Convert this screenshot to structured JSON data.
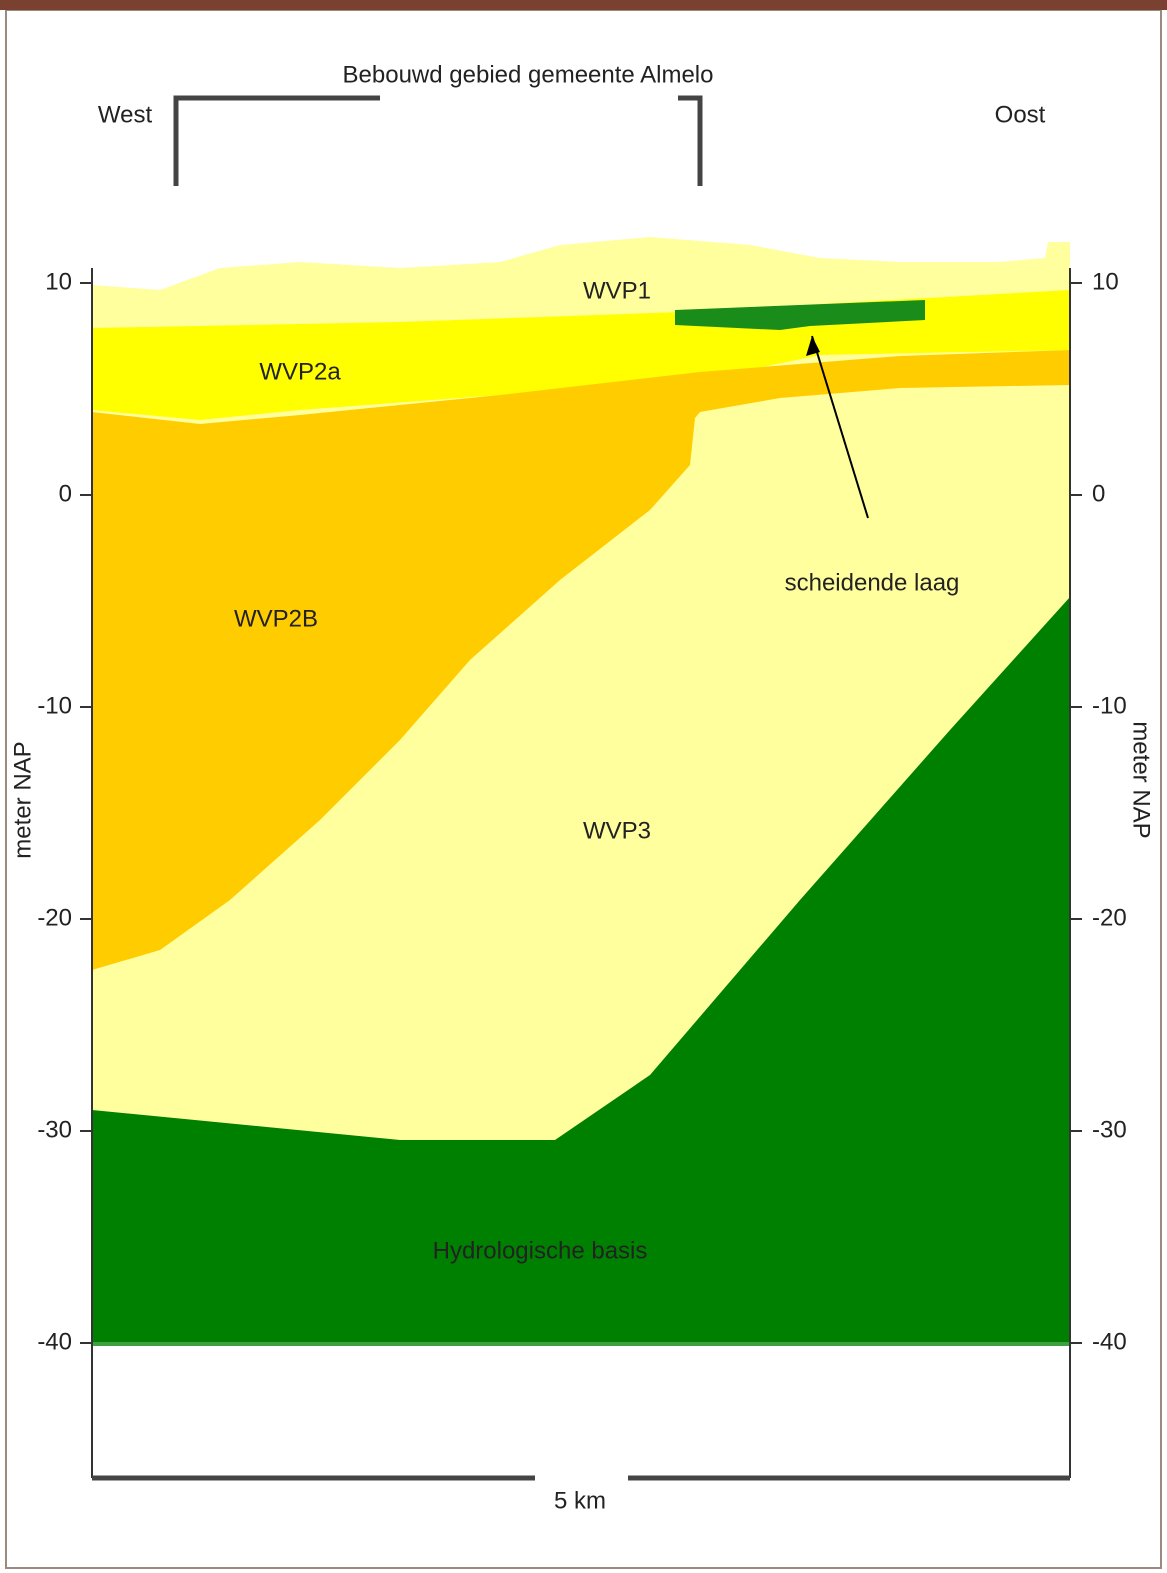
{
  "header": {
    "title": "Bebouwd gebied gemeente Almelo",
    "west": "West",
    "east": "Oost"
  },
  "axis": {
    "label_left": "meter NAP",
    "label_right": "meter NAP",
    "ticks": [
      10,
      0,
      -10,
      -20,
      -30,
      -40
    ]
  },
  "layers": {
    "wvp1": "WVP1",
    "wvp2a": "WVP2a",
    "wvp2b": "WVP2B",
    "wvp3": "WVP3",
    "base": "Hydrologische basis"
  },
  "annotation": "scheidende laag",
  "scale_bar": "5 km"
}
